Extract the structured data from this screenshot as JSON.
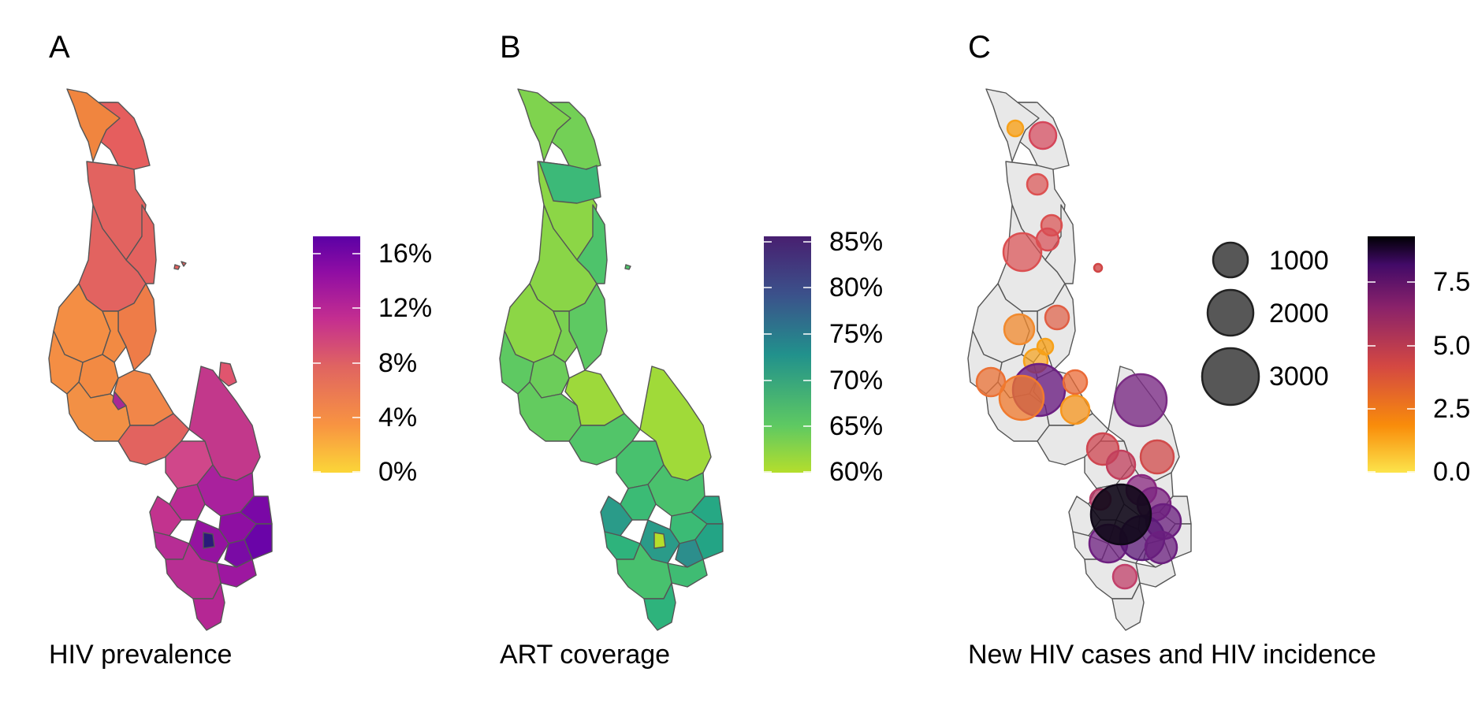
{
  "panels": [
    {
      "letter": "A",
      "caption": "HIV prevalence",
      "colorbar": {
        "palette": [
          "#FBD638",
          "#F89441",
          "#E06461",
          "#C42E90",
          "#8F0DA4",
          "#5B01A5"
        ],
        "ticks": [
          "16%",
          "12%",
          "8%",
          "4%",
          "0%"
        ]
      }
    },
    {
      "letter": "B",
      "caption": "ART coverage",
      "colorbar": {
        "palette": [
          "#B4DE2C",
          "#5EC962",
          "#21918C",
          "#3B528B",
          "#481F70"
        ],
        "ticks": [
          "85%",
          "80%",
          "75%",
          "70%",
          "65%",
          "60%"
        ]
      }
    },
    {
      "letter": "C",
      "caption": "New HIV cases and HIV incidence",
      "size_legend": [
        "1000",
        "2000",
        "3000"
      ],
      "colorbar": {
        "palette": [
          "#FCE44B",
          "#F98C0A",
          "#D44842",
          "#8A226A",
          "#420A68",
          "#000004"
        ],
        "ticks": [
          "7.5",
          "5.0",
          "2.5",
          "0.0"
        ]
      }
    }
  ]
}
